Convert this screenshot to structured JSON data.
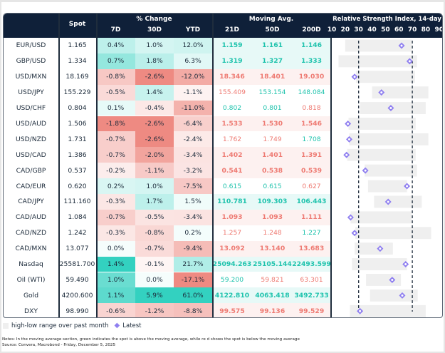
{
  "header": {
    "spot": "Spot",
    "pct_change": "% Change",
    "d7": "7D",
    "d30": "30D",
    "ytd": "YTD",
    "moving_avg": "Moving Avg.",
    "ma21": "21D",
    "ma50": "50D",
    "ma200": "200D",
    "rsi_title": "Relative Strength Index, 14-day",
    "rsi_ticks": [
      "10",
      "20",
      "30",
      "40",
      "50",
      "60",
      "70",
      "80",
      "90"
    ]
  },
  "colors": {
    "green": "#33d1c0",
    "red": "#ee8a82",
    "green_text": "#1fc3ad",
    "red_text": "#ee7a72",
    "marker": "#8f7ff0",
    "range": "#efefef",
    "header_bg": "#0f2039"
  },
  "rows": [
    {
      "name": "EUR/USD",
      "spot": "1.165",
      "d7": 0.4,
      "d30": 1.0,
      "ytd": 12.0,
      "ma21": "1.159",
      "ma50": "1.161",
      "ma200": "1.146",
      "rsi_low": 20,
      "rsi_high": 69.5,
      "rsi": 62
    },
    {
      "name": "GBP/USD",
      "spot": "1.334",
      "d7": 0.7,
      "d30": 1.8,
      "ytd": 6.3,
      "ma21": "1.319",
      "ma50": "1.327",
      "ma200": "1.333",
      "rsi_low": 15,
      "rsi_high": 73.5,
      "rsi": 68
    },
    {
      "name": "USD/MXN",
      "spot": "18.169",
      "d7": -0.8,
      "d30": -2.6,
      "ytd": -12.0,
      "ma21": "18.346",
      "ma50": "18.401",
      "ma200": "19.030",
      "rsi_low": 28,
      "rsi_high": 72,
      "rsi": 27
    },
    {
      "name": "USD/JPY",
      "spot": "155.229",
      "d7": -0.5,
      "d30": 1.4,
      "ytd": -1.1,
      "ma21": "155.409",
      "ma50": "153.154",
      "ma200": "148.084",
      "rsi_low": 40,
      "rsi_high": 82,
      "rsi": 47
    },
    {
      "name": "USD/CHF",
      "spot": "0.804",
      "d7": 0.1,
      "d30": -0.4,
      "ytd": -11.0,
      "ma21": "0.802",
      "ma50": "0.801",
      "ma200": "0.818",
      "rsi_low": 31,
      "rsi_high": 80,
      "rsi": 54
    },
    {
      "name": "USD/AUD",
      "spot": "1.506",
      "d7": -1.8,
      "d30": -2.6,
      "ytd": -6.4,
      "ma21": "1.533",
      "ma50": "1.530",
      "ma200": "1.546",
      "rsi_low": 22.5,
      "rsi_high": 72.5,
      "rsi": 22
    },
    {
      "name": "USD/NZD",
      "spot": "1.731",
      "d7": -0.7,
      "d30": -2.6,
      "ytd": -2.4,
      "ma21": "1.762",
      "ma50": "1.749",
      "ma200": "1.708",
      "rsi_low": 23,
      "rsi_high": 82,
      "rsi": 23
    },
    {
      "name": "USD/CAD",
      "spot": "1.386",
      "d7": -0.7,
      "d30": -2.0,
      "ytd": -3.4,
      "ma21": "1.402",
      "ma50": "1.401",
      "ma200": "1.391",
      "rsi_low": 21.5,
      "rsi_high": 72.5,
      "rsi": 21
    },
    {
      "name": "CAD/GBP",
      "spot": "0.537",
      "d7": -0.2,
      "d30": -1.1,
      "ytd": -3.2,
      "ma21": "0.541",
      "ma50": "0.538",
      "ma200": "0.539",
      "rsi_low": 34.5,
      "rsi_high": 73.5,
      "rsi": 35
    },
    {
      "name": "CAD/EUR",
      "spot": "0.620",
      "d7": 0.2,
      "d30": 1.0,
      "ytd": -7.5,
      "ma21": "0.615",
      "ma50": "0.615",
      "ma200": "0.627",
      "rsi_low": 37,
      "rsi_high": 66,
      "rsi": 66
    },
    {
      "name": "CAD/JPY",
      "spot": "111.160",
      "d7": -0.3,
      "d30": 1.7,
      "ytd": 1.5,
      "ma21": "110.781",
      "ma50": "109.303",
      "ma200": "106.443",
      "rsi_low": 41.5,
      "rsi_high": 77,
      "rsi": 52
    },
    {
      "name": "CAD/AUD",
      "spot": "1.084",
      "d7": -0.7,
      "d30": -0.5,
      "ytd": -3.4,
      "ma21": "1.093",
      "ma50": "1.093",
      "ma200": "1.111",
      "rsi_low": 24,
      "rsi_high": 69.5,
      "rsi": 24
    },
    {
      "name": "CAD/NZD",
      "spot": "1.242",
      "d7": -0.3,
      "d30": -0.8,
      "ytd": 0.2,
      "ma21": "1.257",
      "ma50": "1.248",
      "ma200": "1.227",
      "rsi_low": 27.5,
      "rsi_high": 84,
      "rsi": 27
    },
    {
      "name": "CAD/MXN",
      "spot": "13.077",
      "d7": 0.0,
      "d30": -0.7,
      "ytd": -9.4,
      "ma21": "13.092",
      "ma50": "13.140",
      "ma200": "13.683",
      "rsi_low": 27,
      "rsi_high": 55.5,
      "rsi": 46
    },
    {
      "name": "Nasdaq",
      "spot": "25581.700",
      "d7": 1.4,
      "d30": -0.1,
      "ytd": 21.7,
      "ma21": "25094.263",
      "ma50": "25105.144",
      "ma200": "22493.599",
      "rsi_low": 25,
      "rsi_high": 66,
      "rsi": 65
    },
    {
      "name": "Oil (WTI)",
      "spot": "59.490",
      "d7": 1.0,
      "d30": 0.0,
      "ytd": -17.1,
      "ma21": "59.200",
      "ma50": "59.821",
      "ma200": "63.301",
      "rsi_low": 35.5,
      "rsi_high": 61.5,
      "rsi": 55
    },
    {
      "name": "Gold",
      "spot": "4200.600",
      "d7": 1.1,
      "d30": 5.9,
      "ytd": 61.0,
      "ma21": "4122.810",
      "ma50": "4063.418",
      "ma200": "3492.733",
      "rsi_low": 38.5,
      "rsi_high": 74,
      "rsi": 62.5
    },
    {
      "name": "DXY",
      "spot": "98.990",
      "d7": -0.6,
      "d30": -1.2,
      "ytd": -8.8,
      "ma21": "99.575",
      "ma50": "99.136",
      "ma200": "99.529",
      "rsi_low": 23.5,
      "rsi_high": 80,
      "rsi": 31
    }
  ],
  "legend": {
    "range": "high-low range over past month",
    "latest": "Latest"
  },
  "notes": {
    "line1": "Notes: In the moving average section, green indicates the spot is above the moving average, while re   d shows the spot is below  the moving average",
    "line2": "Source: Convera, Macrobond - Friday, December 5, 2025"
  }
}
